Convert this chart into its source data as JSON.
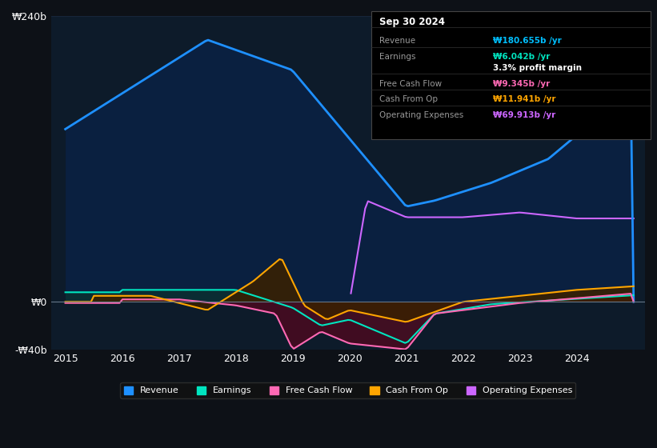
{
  "background_color": "#0d1117",
  "plot_bg_color": "#0d1b2a",
  "title_box": {
    "date": "Sep 30 2024",
    "rows": [
      {
        "label": "Revenue",
        "value": "₩180.655b /yr",
        "value_color": "#00bfff"
      },
      {
        "label": "Earnings",
        "value": "₩6.042b /yr",
        "value_color": "#00e5c0"
      },
      {
        "label": "",
        "value": "3.3% profit margin",
        "value_color": "#ffffff"
      },
      {
        "label": "Free Cash Flow",
        "value": "₩9.345b /yr",
        "value_color": "#ff69b4"
      },
      {
        "label": "Cash From Op",
        "value": "₩11.941b /yr",
        "value_color": "#ffa500"
      },
      {
        "label": "Operating Expenses",
        "value": "₩69.913b /yr",
        "value_color": "#cc66ff"
      }
    ]
  },
  "ylim": [
    -40,
    240
  ],
  "yticks": [
    -40,
    0,
    240
  ],
  "ytick_labels": [
    "-₩40b",
    "₩0",
    "₩240b"
  ],
  "xlim_start": 2014.75,
  "xlim_end": 2025.2,
  "xticks": [
    2015,
    2016,
    2017,
    2018,
    2019,
    2020,
    2021,
    2022,
    2023,
    2024
  ],
  "colors": {
    "revenue": "#1e90ff",
    "revenue_fill": "#0a2040",
    "earnings": "#00e5c0",
    "earnings_fill": "#0a3030",
    "free_cash_flow": "#ff69b4",
    "free_cash_flow_fill": "#4a0a20",
    "cash_from_op": "#ffa500",
    "cash_from_op_fill": "#3a2000",
    "op_expenses": "#cc66ff",
    "op_expenses_fill": "#2a0a5a"
  },
  "legend": [
    {
      "label": "Revenue",
      "color": "#1e90ff"
    },
    {
      "label": "Earnings",
      "color": "#00e5c0"
    },
    {
      "label": "Free Cash Flow",
      "color": "#ff69b4"
    },
    {
      "label": "Cash From Op",
      "color": "#ffa500"
    },
    {
      "label": "Operating Expenses",
      "color": "#cc66ff"
    }
  ]
}
